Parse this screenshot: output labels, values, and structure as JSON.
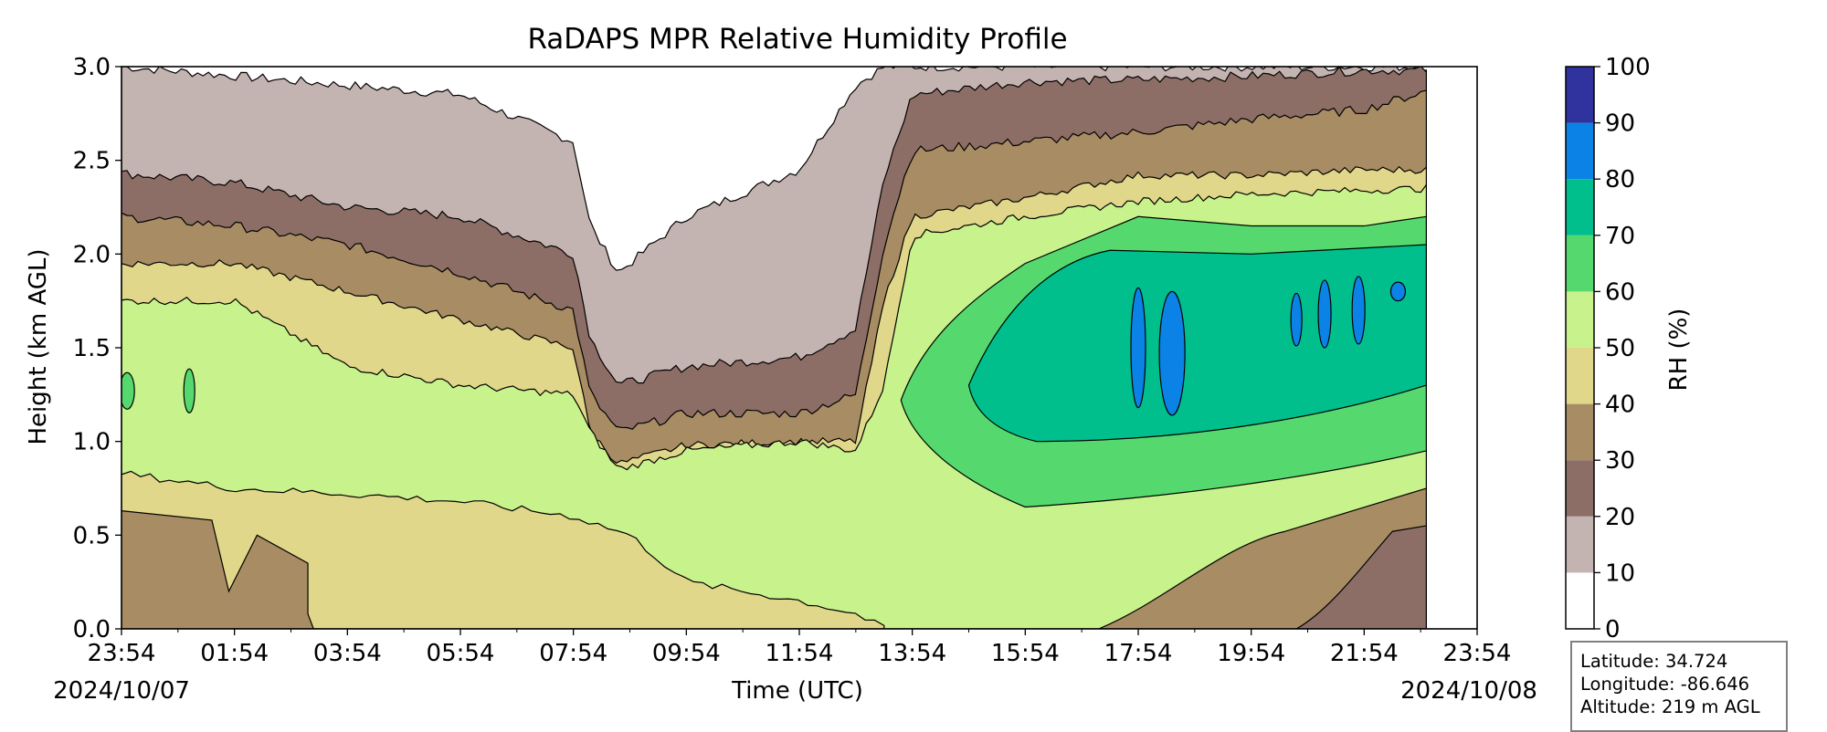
{
  "chart_data": {
    "type": "contourf",
    "title": "RaDAPS MPR Relative Humidity Profile",
    "xlabel": "Time (UTC)",
    "ylabel": "Height (km AGL)",
    "x_tick_labels": [
      "23:54",
      "01:54",
      "03:54",
      "05:54",
      "07:54",
      "09:54",
      "11:54",
      "13:54",
      "15:54",
      "17:54",
      "19:54",
      "21:54",
      "23:54"
    ],
    "x_date_start": "2024/10/07",
    "x_date_end": "2024/10/08",
    "xlim": [
      "2024-10-07 23:54",
      "2024-10-08 23:54"
    ],
    "data_end_time": "2024-10-08 23:00",
    "ylim": [
      0,
      3.0
    ],
    "y_ticks": [
      0.0,
      0.5,
      1.0,
      1.5,
      2.0,
      2.5,
      3.0
    ],
    "y_tick_labels": [
      "0.0",
      "0.5",
      "1.0",
      "1.5",
      "2.0",
      "2.5",
      "3.0"
    ],
    "x_minor_ticks_per_major": 1,
    "colorbar": {
      "label": "RH (%)",
      "levels": [
        0,
        10,
        20,
        30,
        40,
        50,
        60,
        70,
        80,
        90,
        100
      ],
      "colors": [
        "#ffffff",
        "#c4b4b1",
        "#8c6e66",
        "#a88c63",
        "#e0d78a",
        "#c8f28c",
        "#55d96e",
        "#00bf8c",
        "#0a82e6",
        "#30339e"
      ]
    },
    "contour_line_color": "#000000",
    "grid": false,
    "description_regions": [
      {
        "time_hours": [
          0,
          24
        ],
        "note": "boundaries below; heights km AGL"
      }
    ],
    "boundaries": {
      "times_hours": [
        0,
        2,
        4,
        6,
        8,
        8.3,
        8.8,
        10,
        12,
        13,
        13.5,
        14,
        16,
        18,
        20,
        22,
        23.1
      ],
      "rh10_top": [
        3.0,
        2.95,
        2.9,
        2.85,
        2.6,
        2.15,
        1.9,
        2.2,
        2.45,
        2.9,
        3.0,
        3.0,
        3.0,
        3.0,
        3.0,
        3.0,
        3.0
      ],
      "rh20_top": [
        2.43,
        2.38,
        2.25,
        2.2,
        2.0,
        1.55,
        1.3,
        1.4,
        1.45,
        1.6,
        2.4,
        2.85,
        2.92,
        2.93,
        2.95,
        2.98,
        2.98
      ],
      "rh30_top": [
        2.2,
        2.15,
        2.05,
        1.9,
        1.7,
        1.25,
        1.05,
        1.15,
        1.15,
        1.25,
        2.05,
        2.55,
        2.6,
        2.65,
        2.72,
        2.77,
        2.87
      ],
      "rh40_top": [
        1.95,
        1.95,
        1.8,
        1.65,
        1.5,
        1.05,
        0.88,
        0.98,
        1.0,
        1.0,
        1.75,
        2.2,
        2.3,
        2.42,
        2.42,
        2.45,
        2.45
      ],
      "rh50_top": [
        1.75,
        1.75,
        1.4,
        1.3,
        1.25,
        1.05,
        0.85,
        0.95,
        1.0,
        0.95,
        1.3,
        2.1,
        2.2,
        2.28,
        2.32,
        2.34,
        2.35
      ],
      "rh60_bottom_or_top": [
        0.83,
        0.75,
        0.72,
        0.68,
        0.6,
        0.55,
        0.5,
        0.25,
        0.15,
        0.08,
        0.7,
        1.45,
        2.05,
        2.15,
        2.2,
        2.25,
        2.25
      ],
      "rh70_core": "approx 1.1-2.05 km from 15:54 to 23:00",
      "rh80_patches": "narrow cells near 1.2-1.9 km around 17:54-18:54 and 20:30-22:54"
    }
  },
  "info": {
    "latitude": "Latitude: 34.724",
    "longitude": "Longitude: -86.646",
    "altitude": "Altitude: 219 m AGL"
  }
}
